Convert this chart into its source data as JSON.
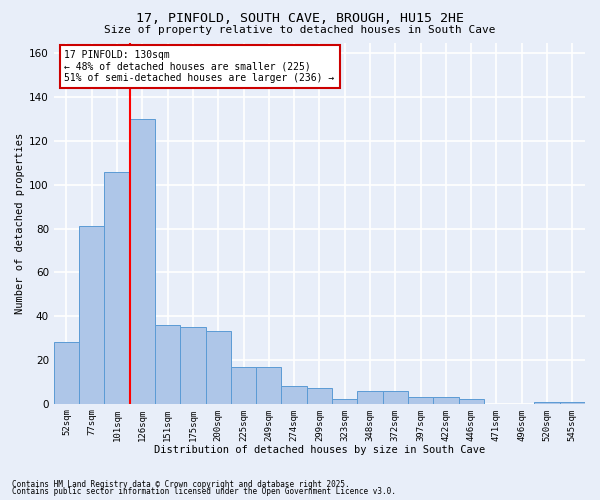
{
  "title_line1": "17, PINFOLD, SOUTH CAVE, BROUGH, HU15 2HE",
  "title_line2": "Size of property relative to detached houses in South Cave",
  "xlabel": "Distribution of detached houses by size in South Cave",
  "ylabel": "Number of detached properties",
  "categories": [
    "52sqm",
    "77sqm",
    "101sqm",
    "126sqm",
    "151sqm",
    "175sqm",
    "200sqm",
    "225sqm",
    "249sqm",
    "274sqm",
    "299sqm",
    "323sqm",
    "348sqm",
    "372sqm",
    "397sqm",
    "422sqm",
    "446sqm",
    "471sqm",
    "496sqm",
    "520sqm",
    "545sqm"
  ],
  "values": [
    28,
    81,
    106,
    130,
    36,
    35,
    33,
    17,
    17,
    8,
    7,
    2,
    6,
    6,
    3,
    3,
    2,
    0,
    0,
    1,
    1
  ],
  "bar_color": "#aec6e8",
  "bar_edge_color": "#5b9bd5",
  "highlight_index": 3,
  "annotation_text": "17 PINFOLD: 130sqm\n← 48% of detached houses are smaller (225)\n51% of semi-detached houses are larger (236) →",
  "annotation_box_color": "#ffffff",
  "annotation_box_edge_color": "#cc0000",
  "ylim": [
    0,
    165
  ],
  "yticks": [
    0,
    20,
    40,
    60,
    80,
    100,
    120,
    140,
    160
  ],
  "background_color": "#e8eef9",
  "grid_color": "#ffffff",
  "footer_line1": "Contains HM Land Registry data © Crown copyright and database right 2025.",
  "footer_line2": "Contains public sector information licensed under the Open Government Licence v3.0."
}
